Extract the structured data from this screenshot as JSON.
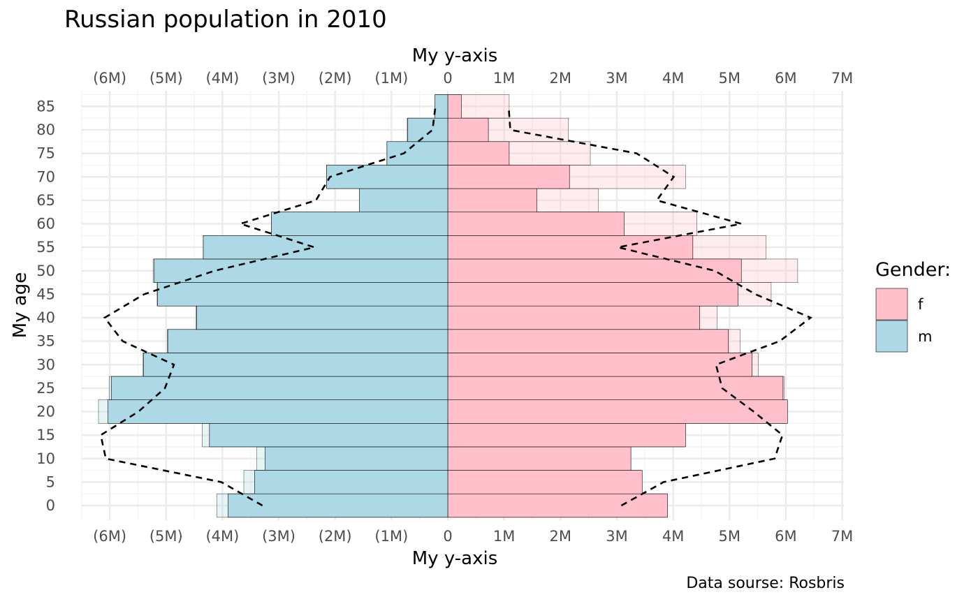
{
  "chart_data": {
    "type": "bar",
    "orientation": "horizontal",
    "title": "Russian population in 2010",
    "caption": "Data sourse: Rosbris",
    "xlabel": "My y-axis",
    "ylabel": "My age",
    "xlim": [
      -6500000,
      7000000
    ],
    "x_ticks": [
      -6000000,
      -5000000,
      -4000000,
      -3000000,
      -2000000,
      -1000000,
      0,
      1000000,
      2000000,
      3000000,
      4000000,
      5000000,
      6000000,
      7000000
    ],
    "x_tick_labels": [
      "(6M)",
      "(5M)",
      "(4M)",
      "(3M)",
      "(2M)",
      "(1M)",
      "0",
      "1M",
      "2M",
      "3M",
      "4M",
      "5M",
      "6M",
      "7M"
    ],
    "categories": [
      0,
      5,
      10,
      15,
      20,
      25,
      30,
      35,
      40,
      45,
      50,
      55,
      60,
      65,
      70,
      75,
      80,
      85
    ],
    "category_labels": [
      "0",
      "5",
      "10",
      "15",
      "20",
      "25",
      "30",
      "35",
      "40",
      "45",
      "50",
      "55",
      "60",
      "65",
      "70",
      "75",
      "80",
      "85"
    ],
    "series": [
      {
        "name": "f",
        "color": "#ffc0cb",
        "values": [
          3900000,
          3450000,
          3250000,
          4220000,
          6030000,
          5950000,
          5400000,
          4980000,
          4470000,
          5150000,
          5210000,
          4350000,
          3130000,
          1580000,
          2160000,
          1090000,
          720000,
          240000
        ]
      },
      {
        "name": "m",
        "color": "#add8e6",
        "values": [
          -3900000,
          -3430000,
          -3240000,
          -4230000,
          -6030000,
          -5970000,
          -5400000,
          -4970000,
          -4460000,
          -5150000,
          -5210000,
          -4340000,
          -3130000,
          -1570000,
          -2150000,
          -1080000,
          -710000,
          -230000
        ]
      }
    ],
    "reference_bars": {
      "f": [
        3880000,
        3430000,
        3240000,
        4200000,
        6010000,
        5970000,
        5510000,
        5190000,
        4780000,
        5740000,
        6210000,
        5650000,
        4420000,
        2670000,
        4220000,
        2530000,
        2140000,
        1090000
      ],
      "m": [
        -4100000,
        -3620000,
        -3390000,
        -4360000,
        -6200000,
        -6010000,
        -5410000,
        -4980000,
        -4470000,
        -5160000,
        -5230000,
        -4340000,
        -3130000,
        -1560000,
        -2150000,
        -1080000,
        -720000,
        -220000
      ]
    },
    "dashed_lines": {
      "f": [
        3080000,
        3830000,
        5800000,
        5940000,
        5430000,
        4870000,
        4760000,
        5890000,
        6440000,
        5460000,
        4740000,
        3020000,
        5210000,
        3710000,
        4010000,
        3350000,
        1110000,
        1080000
      ],
      "m": [
        -3290000,
        -4020000,
        -6070000,
        -6160000,
        -5490000,
        -5020000,
        -4860000,
        -5770000,
        -6090000,
        -5390000,
        -4140000,
        -2370000,
        -3680000,
        -2340000,
        -2090000,
        -780000,
        -270000,
        -220000
      ]
    },
    "legend": {
      "title": "Gender:",
      "position": "right",
      "entries": [
        "f",
        "m"
      ]
    },
    "grid": true
  }
}
